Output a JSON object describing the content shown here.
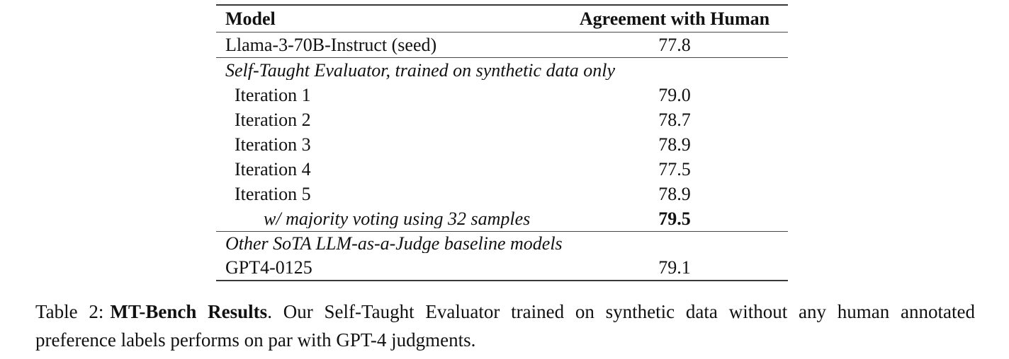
{
  "page": {
    "background": "#ffffff",
    "text_color": "#111111",
    "rule_color": "#3c3c3c"
  },
  "table": {
    "header": {
      "model": "Model",
      "agreement": "Agreement with Human"
    },
    "sections": [
      {
        "label": "Self-Taught Evaluator, trained on synthetic data only"
      },
      {
        "label": "Other SoTA LLM-as-a-Judge baseline models"
      }
    ],
    "rows": [
      {
        "model": "Llama-3-70B-Instruct (seed)",
        "value": "77.8"
      },
      {
        "model": "Iteration 1",
        "value": "79.0"
      },
      {
        "model": "Iteration 2",
        "value": "78.7"
      },
      {
        "model": "Iteration 3",
        "value": "78.9"
      },
      {
        "model": "Iteration 4",
        "value": "77.5"
      },
      {
        "model": "Iteration 5",
        "value": "78.9"
      },
      {
        "model": "w/ majority voting using 32 samples",
        "value": "79.5"
      },
      {
        "model": "GPT4-0125",
        "value": "79.1"
      }
    ]
  },
  "caption": {
    "prefix": "Table 2:",
    "title": "MT-Bench Results",
    "body": ". Our Self-Taught Evaluator trained on synthetic data without any human annotated preference labels performs on par with GPT-4 judgments."
  }
}
